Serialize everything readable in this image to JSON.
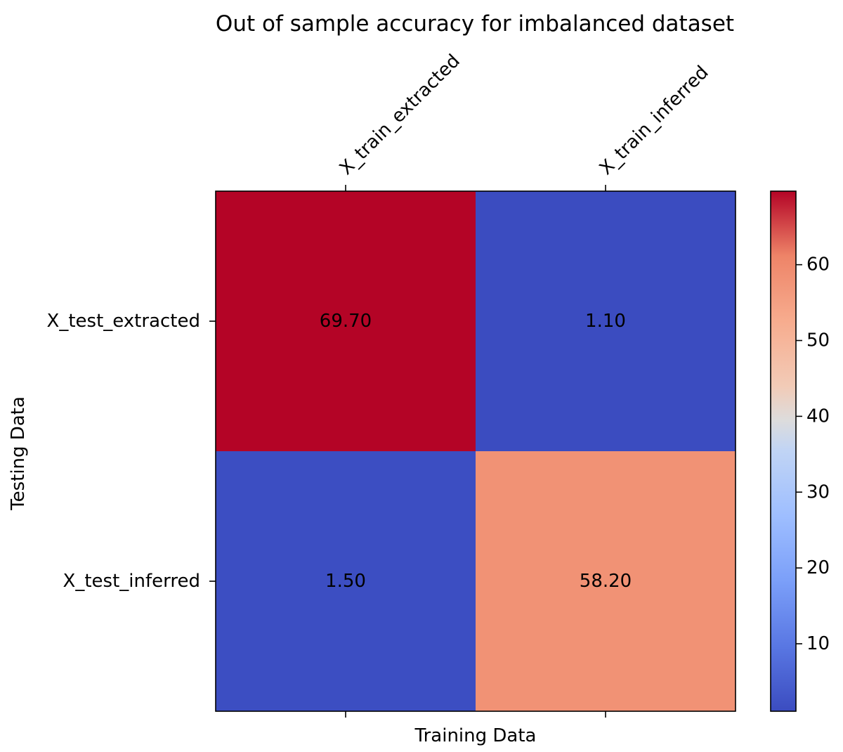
{
  "chart_data": {
    "type": "heatmap",
    "title": "Out of sample accuracy for imbalanced dataset",
    "xlabel": "Training Data",
    "ylabel": "Testing Data",
    "x_categories": [
      "X_train_extracted",
      "X_train_inferred"
    ],
    "y_categories": [
      "X_test_extracted",
      "X_test_inferred"
    ],
    "values": [
      [
        69.7,
        1.1
      ],
      [
        1.5,
        58.2
      ]
    ],
    "value_labels": [
      [
        "69.70",
        "1.10"
      ],
      [
        "1.50",
        "58.20"
      ]
    ],
    "colormap": "coolwarm",
    "colorbar": {
      "vmin": 1.1,
      "vmax": 69.7,
      "ticks": [
        10,
        20,
        30,
        40,
        50,
        60
      ],
      "tick_labels": [
        "10",
        "20",
        "30",
        "40",
        "50",
        "60"
      ]
    },
    "x_tick_position": "top",
    "x_tick_rotation_deg": 45
  }
}
